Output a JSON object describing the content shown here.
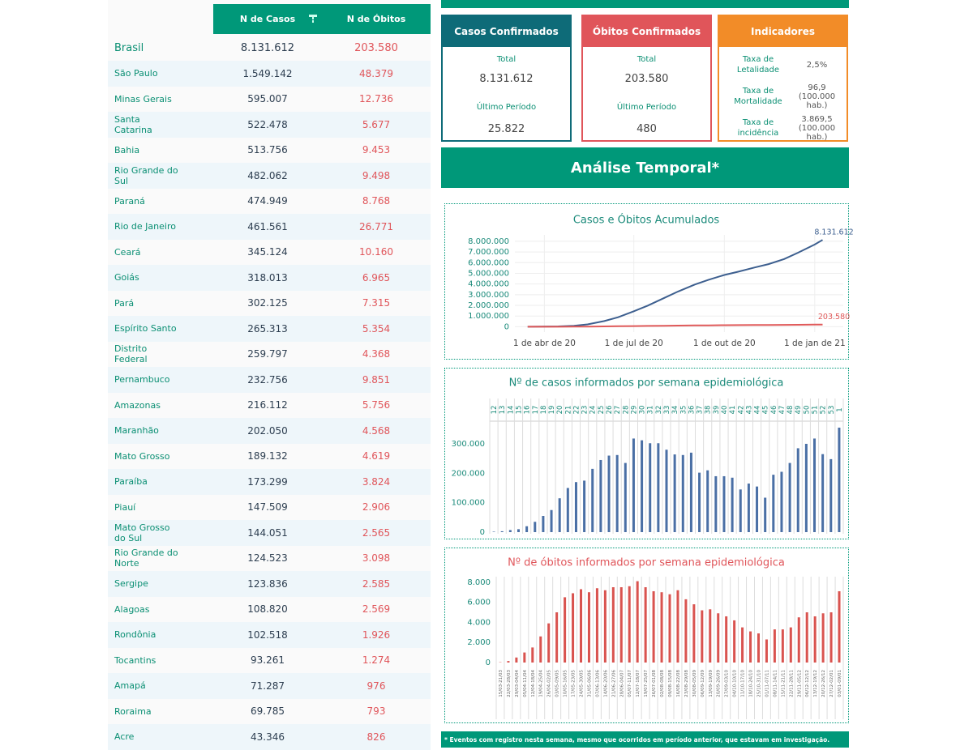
{
  "table": {
    "header": [
      "N de Casos",
      "N de Óbitos"
    ],
    "rows": [
      [
        "Brasil",
        "8.131.612",
        "203.580"
      ],
      [
        "São Paulo",
        "1.549.142",
        "48.379"
      ],
      [
        "Minas Gerais",
        "595.007",
        "12.736"
      ],
      [
        "Santa Catarina",
        "522.478",
        "5.677"
      ],
      [
        "Bahia",
        "513.756",
        "9.453"
      ],
      [
        "Rio Grande do Sul",
        "482.062",
        "9.498"
      ],
      [
        "Paraná",
        "474.949",
        "8.768"
      ],
      [
        "Rio de Janeiro",
        "461.561",
        "26.771"
      ],
      [
        "Ceará",
        "345.124",
        "10.160"
      ],
      [
        "Goiás",
        "318.013",
        "6.965"
      ],
      [
        "Pará",
        "302.125",
        "7.315"
      ],
      [
        "Espírito Santo",
        "265.313",
        "5.354"
      ],
      [
        "Distrito Federal",
        "259.797",
        "4.368"
      ],
      [
        "Pernambuco",
        "232.756",
        "9.851"
      ],
      [
        "Amazonas",
        "216.112",
        "5.756"
      ],
      [
        "Maranhão",
        "202.050",
        "4.568"
      ],
      [
        "Mato Grosso",
        "189.132",
        "4.619"
      ],
      [
        "Paraíba",
        "173.299",
        "3.824"
      ],
      [
        "Piauí",
        "147.509",
        "2.906"
      ],
      [
        "Mato Grosso do Sul",
        "144.051",
        "2.565"
      ],
      [
        "Rio Grande do Norte",
        "124.523",
        "3.098"
      ],
      [
        "Sergipe",
        "123.836",
        "2.585"
      ],
      [
        "Alagoas",
        "108.820",
        "2.569"
      ],
      [
        "Rondônia",
        "102.518",
        "1.926"
      ],
      [
        "Tocantins",
        "93.261",
        "1.274"
      ],
      [
        "Amapá",
        "71.287",
        "976"
      ],
      [
        "Roraima",
        "69.785",
        "793"
      ],
      [
        "Acre",
        "43.346",
        "826"
      ]
    ]
  },
  "cards": [
    {
      "title": "Casos Confirmados",
      "total_label": "Total",
      "total": "8.131.612",
      "period_label": "Último Período",
      "period": "25.822"
    },
    {
      "title": "Óbitos Confirmados",
      "total_label": "Total",
      "total": "203.580",
      "period_label": "Último Período",
      "period": "480"
    }
  ],
  "indicators": {
    "title": "Indicadores",
    "rows": [
      {
        "label": "Taxa de Letalidade",
        "value": "2,5%"
      },
      {
        "label": "Taxa de Mortalidade",
        "value": "96,9",
        "unit": "(100.000 hab.)"
      },
      {
        "label": "Taxa de incidência",
        "value": "3.869,5",
        "unit": "(100.000 hab.)"
      }
    ]
  },
  "section_title": "Análise Temporal*",
  "footnote": "* Eventos com registro nesta semana, mesmo que ocorridos em período anterior, que estavam em investigação.",
  "chart_data": [
    {
      "type": "line",
      "title": "Casos e Óbitos Acumulados",
      "x": [
        "2020-03-15",
        "2020-04-15",
        "2020-05-01",
        "2020-05-15",
        "2020-06-01",
        "2020-06-15",
        "2020-07-01",
        "2020-07-15",
        "2020-08-01",
        "2020-08-15",
        "2020-09-01",
        "2020-09-15",
        "2020-10-01",
        "2020-10-15",
        "2020-11-01",
        "2020-11-15",
        "2020-12-01",
        "2020-12-15",
        "2021-01-01",
        "2021-01-09"
      ],
      "series": [
        {
          "name": "Casos",
          "color": "#3d5f8f",
          "values": [
            200,
            28000,
            90000,
            220000,
            530000,
            890000,
            1450000,
            1970000,
            2700000,
            3300000,
            3950000,
            4400000,
            4850000,
            5150000,
            5550000,
            5860000,
            6340000,
            6930000,
            7700000,
            8131612
          ],
          "value_labels": [
            null,
            null,
            null,
            null,
            null,
            null,
            null,
            null,
            null,
            null,
            null,
            null,
            null,
            null,
            null,
            null,
            null,
            null,
            null,
            "8.131.612"
          ]
        },
        {
          "name": "Óbitos",
          "color": "#e05a5a",
          "values": [
            0,
            1700,
            6000,
            14000,
            30000,
            44000,
            60000,
            75000,
            93000,
            107000,
            124000,
            133000,
            144000,
            152000,
            160000,
            166000,
            173000,
            182000,
            195000,
            203580
          ],
          "value_labels": [
            null,
            null,
            null,
            null,
            null,
            null,
            null,
            null,
            null,
            null,
            null,
            null,
            null,
            null,
            null,
            null,
            null,
            null,
            null,
            "203.580"
          ]
        }
      ],
      "xlim": [
        "2020-03-02",
        "2021-01-30"
      ],
      "xticks": [
        {
          "value": "2020-04-01",
          "label": "1 de abr de 20"
        },
        {
          "value": "2020-07-01",
          "label": "1 de jul de 20"
        },
        {
          "value": "2020-10-01",
          "label": "1 de out de 20"
        },
        {
          "value": "2021-01-01",
          "label": "1 de jan de 21"
        }
      ],
      "ylim": [
        -500000,
        8600000
      ],
      "yticks": [
        0,
        {
          "value": 1000000,
          "label": "1.000.000"
        },
        {
          "value": 2000000,
          "label": "2.000.000"
        },
        {
          "value": 3000000,
          "label": "3.000.000"
        },
        {
          "value": 4000000,
          "label": "4.000.000"
        },
        {
          "value": 5000000,
          "label": "5.000.000"
        },
        {
          "value": 6000000,
          "label": "6.000.000"
        },
        {
          "value": 7000000,
          "label": "7.000.000"
        },
        {
          "value": 8000000,
          "label": "8.000.000"
        }
      ],
      "grid": true
    },
    {
      "type": "bar",
      "title": "Nº de casos informados por semana epidemiológica",
      "color": "#4a6fa5",
      "categories": [
        "12",
        "13",
        "14",
        "15",
        "16",
        "17",
        "18",
        "19",
        "20",
        "21",
        "22",
        "23",
        "24",
        "25",
        "26",
        "27",
        "28",
        "29",
        "30",
        "31",
        "32",
        "33",
        "34",
        "35",
        "36",
        "37",
        "38",
        "39",
        "40",
        "41",
        "42",
        "43",
        "44",
        "45",
        "46",
        "47",
        "48",
        "49",
        "50",
        "51",
        "52",
        "53",
        "1"
      ],
      "values": [
        1500,
        3000,
        7000,
        10000,
        20000,
        35000,
        55000,
        75000,
        115000,
        150000,
        170000,
        175000,
        215000,
        245000,
        260000,
        262000,
        235000,
        318000,
        312000,
        302000,
        302000,
        280000,
        264000,
        262000,
        270000,
        202000,
        210000,
        190000,
        190000,
        185000,
        145000,
        165000,
        155000,
        117000,
        195000,
        205000,
        235000,
        285000,
        300000,
        318000,
        265000,
        248000,
        355000
      ],
      "ylim": [
        0,
        377000
      ],
      "yticks": [
        0,
        {
          "value": 100000,
          "label": "100.000"
        },
        {
          "value": 200000,
          "label": "200.000"
        },
        {
          "value": 300000,
          "label": "300.000"
        }
      ],
      "grid": true
    },
    {
      "type": "bar",
      "title": "Nº de óbitos informados por semana epidemiológica",
      "color": "#d9534f",
      "categories": [
        "15/03-21/03",
        "22/03-28/03",
        "29/03-04/04",
        "05/04-11/04",
        "12/04-18/04",
        "19/04-25/04",
        "26/04-02/05",
        "03/05-09/05",
        "10/05-16/05",
        "17/05-23/05",
        "24/05-30/05",
        "31/05-06/06",
        "07/06-13/06",
        "14/06-20/06",
        "21/06-27/06",
        "28/06-04/07",
        "05/07-11/07",
        "12/07-18/07",
        "19/07-25/07",
        "26/07-01/08",
        "02/08-08/08",
        "09/08-15/08",
        "16/08-22/08",
        "23/08-29/08",
        "30/08-05/09",
        "06/09-12/09",
        "13/09-19/09",
        "20/09-26/09",
        "27/09-03/10",
        "04/10-10/10",
        "11/10-17/10",
        "18/10-24/10",
        "25/10-31/10",
        "01/11-07/11",
        "08/11-14/11",
        "15/11-21/11",
        "22/11-28/11",
        "29/11-05/12",
        "06/12-12/12",
        "13/12-19/12",
        "20/12-26/12",
        "27/12-02/01",
        "03/01-09/01"
      ],
      "values": [
        30,
        150,
        500,
        1000,
        1500,
        2600,
        3900,
        5000,
        6500,
        6900,
        7300,
        7000,
        7400,
        7200,
        7500,
        7500,
        7600,
        8100,
        7500,
        7100,
        7000,
        6800,
        7200,
        6300,
        5800,
        5200,
        5300,
        4900,
        4600,
        4200,
        3500,
        3100,
        2900,
        2300,
        3300,
        3300,
        3500,
        4500,
        5000,
        4600,
        4900,
        5000,
        7100
      ],
      "ylim": [
        0,
        8550
      ],
      "yticks": [
        0,
        {
          "value": 2000,
          "label": "2.000"
        },
        {
          "value": 4000,
          "label": "4.000"
        },
        {
          "value": 6000,
          "label": "6.000"
        },
        {
          "value": 8000,
          "label": "8.000"
        }
      ],
      "grid": true
    }
  ]
}
